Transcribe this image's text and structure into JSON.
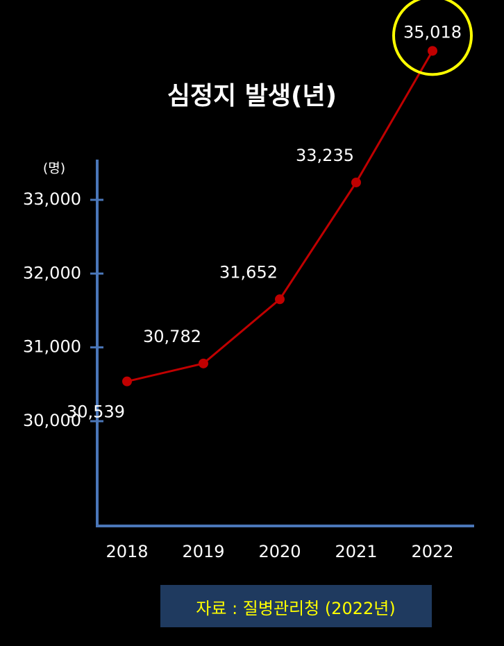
{
  "chart_data": {
    "type": "line",
    "title": "심정지 발생(년)",
    "y_unit": "(명)",
    "categories": [
      "2018",
      "2019",
      "2020",
      "2021",
      "2022"
    ],
    "values": [
      30539,
      30782,
      31652,
      33235,
      35018
    ],
    "value_labels": [
      "30,539",
      "30,782",
      "31,652",
      "33,235",
      "35,018"
    ],
    "color": "#c00000",
    "ylim": [
      28580,
      33545
    ],
    "yticks": [
      {
        "value": 30000,
        "label": "30,000"
      },
      {
        "value": 31000,
        "label": "31,000"
      },
      {
        "value": 32000,
        "label": "32,000"
      },
      {
        "value": 33000,
        "label": "33,000"
      }
    ],
    "source": "자료 : 질병관리청 (2022년)"
  }
}
